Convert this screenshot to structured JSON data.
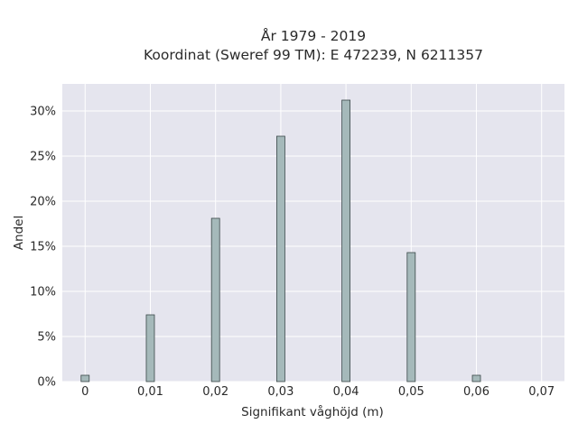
{
  "chart_data": {
    "type": "bar",
    "title": "År 1979 - 2019",
    "subtitle": "Koordinat (Sweref 99 TM): E 472239, N 6211357",
    "xlabel": "Signifikant våghöjd (m)",
    "ylabel": "Andel",
    "x": [
      0,
      0.01,
      0.02,
      0.03,
      0.04,
      0.05,
      0.06
    ],
    "values": [
      0.7,
      7.4,
      18.1,
      27.2,
      31.2,
      14.3,
      0.7
    ],
    "xlim": [
      -0.0035,
      0.0735
    ],
    "ylim": [
      0,
      33
    ],
    "xticks": [
      0,
      0.01,
      0.02,
      0.03,
      0.04,
      0.05,
      0.06,
      0.07
    ],
    "xtick_labels": [
      "0",
      "0,01",
      "0,02",
      "0,03",
      "0,04",
      "0,05",
      "0,06",
      "0,07"
    ],
    "yticks": [
      0,
      5,
      10,
      15,
      20,
      25,
      30
    ],
    "ytick_labels": [
      "0%",
      "5%",
      "10%",
      "15%",
      "20%",
      "25%",
      "30%"
    ],
    "grid": true,
    "bar_color": "#a5b9ba",
    "bar_edge_color": "#3a4748",
    "plot_background": "#e5e5ee",
    "grid_color": "#ffffff"
  }
}
